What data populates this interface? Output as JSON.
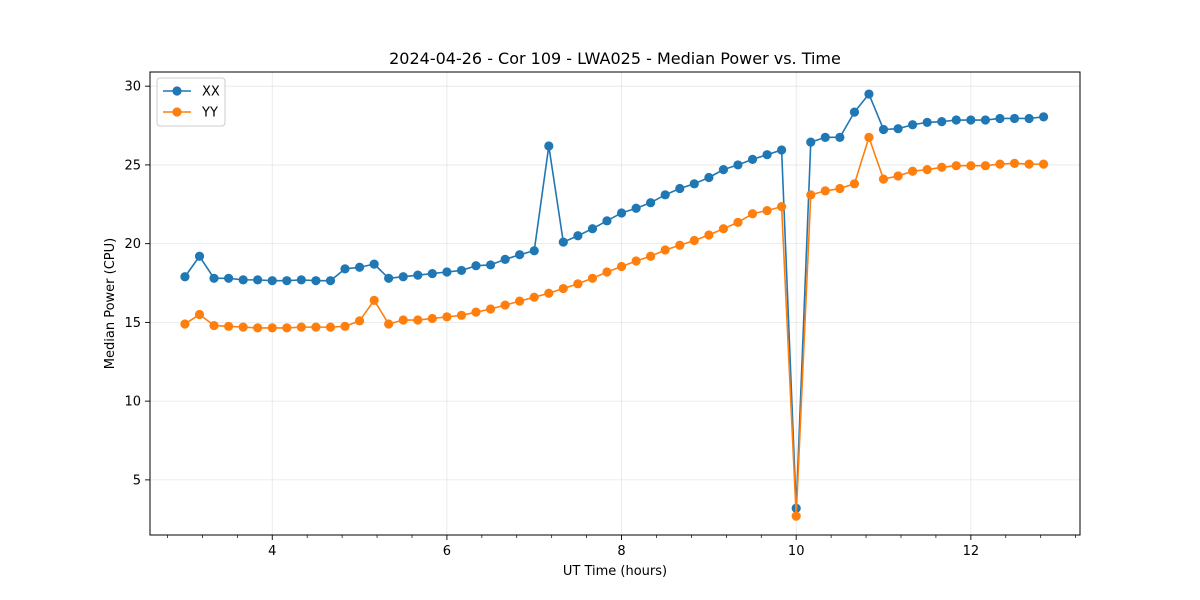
{
  "chart_data": {
    "type": "line",
    "title": "2024-04-26 - Cor 109 - LWA025 - Median Power vs. Time",
    "xlabel": "UT Time (hours)",
    "ylabel": "Median Power (CPU)",
    "xlim": [
      2.6,
      13.25
    ],
    "ylim": [
      1.5,
      30.9
    ],
    "xticks": [
      4,
      6,
      8,
      10,
      12
    ],
    "yticks": [
      5,
      10,
      15,
      20,
      25,
      30
    ],
    "grid": true,
    "legend_position": "top-left",
    "x": [
      3.0,
      3.167,
      3.333,
      3.5,
      3.667,
      3.833,
      4.0,
      4.167,
      4.333,
      4.5,
      4.667,
      4.833,
      5.0,
      5.167,
      5.333,
      5.5,
      5.667,
      5.833,
      6.0,
      6.167,
      6.333,
      6.5,
      6.667,
      6.833,
      7.0,
      7.167,
      7.333,
      7.5,
      7.667,
      7.833,
      8.0,
      8.167,
      8.333,
      8.5,
      8.667,
      8.833,
      9.0,
      9.167,
      9.333,
      9.5,
      9.667,
      9.833,
      10.0,
      10.167,
      10.333,
      10.5,
      10.667,
      10.833,
      11.0,
      11.167,
      11.333,
      11.5,
      11.667,
      11.833,
      12.0,
      12.167,
      12.333,
      12.5,
      12.667,
      12.833
    ],
    "series": [
      {
        "name": "XX",
        "color": "#1f77b4",
        "values": [
          17.9,
          19.2,
          17.8,
          17.8,
          17.7,
          17.7,
          17.65,
          17.65,
          17.7,
          17.65,
          17.65,
          18.4,
          18.5,
          18.7,
          17.8,
          17.9,
          18.0,
          18.1,
          18.2,
          18.3,
          18.6,
          18.65,
          19.0,
          19.3,
          19.55,
          26.2,
          20.1,
          20.5,
          20.95,
          21.45,
          21.95,
          22.25,
          22.6,
          23.1,
          23.5,
          23.8,
          24.2,
          24.7,
          25.0,
          25.35,
          25.65,
          25.95,
          3.2,
          26.45,
          26.75,
          26.75,
          28.35,
          29.5,
          27.25,
          27.3,
          27.55,
          27.7,
          27.75,
          27.85,
          27.85,
          27.85,
          27.95,
          27.95,
          27.95,
          28.05
        ]
      },
      {
        "name": "YY",
        "color": "#ff7f0e",
        "values": [
          14.9,
          15.5,
          14.8,
          14.75,
          14.7,
          14.65,
          14.65,
          14.65,
          14.7,
          14.7,
          14.7,
          14.75,
          15.1,
          16.4,
          14.9,
          15.15,
          15.15,
          15.25,
          15.35,
          15.45,
          15.65,
          15.85,
          16.1,
          16.35,
          16.6,
          16.85,
          17.15,
          17.45,
          17.8,
          18.2,
          18.55,
          18.9,
          19.2,
          19.6,
          19.9,
          20.2,
          20.55,
          20.95,
          21.35,
          21.9,
          22.1,
          22.35,
          2.7,
          23.1,
          23.35,
          23.5,
          23.8,
          26.75,
          24.1,
          24.3,
          24.6,
          24.7,
          24.85,
          24.95,
          24.95,
          24.95,
          25.05,
          25.1,
          25.05,
          25.05
        ]
      }
    ]
  }
}
